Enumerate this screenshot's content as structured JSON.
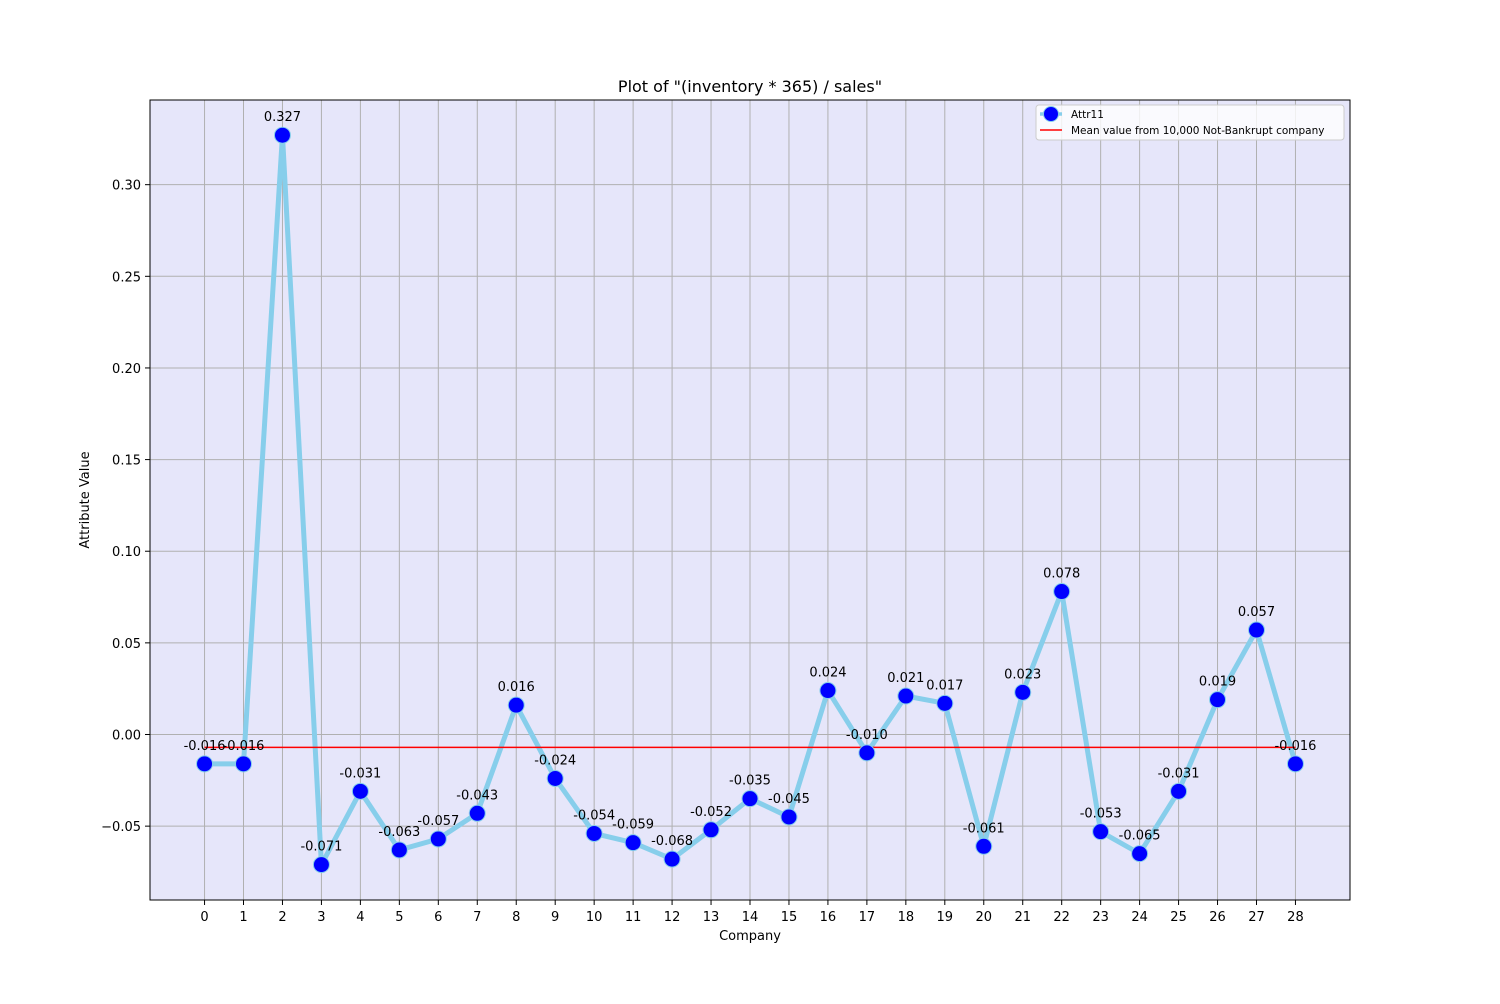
{
  "chart_data": {
    "type": "line",
    "title": "Plot of \"(inventory * 365) / sales\"",
    "xlabel": "Company",
    "ylabel": "Attribute Value",
    "x": [
      0,
      1,
      2,
      3,
      4,
      5,
      6,
      7,
      8,
      9,
      10,
      11,
      12,
      13,
      14,
      15,
      16,
      17,
      18,
      19,
      20,
      21,
      22,
      23,
      24,
      25,
      26,
      27,
      28
    ],
    "x_tick_labels": [
      "0",
      "1",
      "2",
      "3",
      "4",
      "5",
      "6",
      "7",
      "8",
      "9",
      "10",
      "11",
      "12",
      "13",
      "14",
      "15",
      "16",
      "17",
      "18",
      "19",
      "20",
      "21",
      "22",
      "23",
      "24",
      "25",
      "26",
      "27",
      "28"
    ],
    "y_tick_values": [
      -0.05,
      0.0,
      0.05,
      0.1,
      0.15,
      0.2,
      0.25,
      0.3
    ],
    "y_tick_labels": [
      "−0.05",
      "0.00",
      "0.05",
      "0.10",
      "0.15",
      "0.20",
      "0.25",
      "0.30"
    ],
    "xlim": [
      -1.4,
      29.4
    ],
    "ylim": [
      -0.0903,
      0.3462
    ],
    "grid": true,
    "legend_position": "top-right",
    "series": [
      {
        "name": "Attr11",
        "line_color": "#87ceeb",
        "marker_color": "#0000ff",
        "values": [
          -0.016,
          -0.016,
          0.327,
          -0.071,
          -0.031,
          -0.063,
          -0.057,
          -0.043,
          0.016,
          -0.024,
          -0.054,
          -0.059,
          -0.068,
          -0.052,
          -0.035,
          -0.045,
          0.024,
          -0.01,
          0.021,
          0.017,
          -0.061,
          0.023,
          0.078,
          -0.053,
          -0.065,
          -0.031,
          0.019,
          0.057,
          -0.016
        ],
        "data_labels": [
          "-0.016",
          "-0.016",
          "0.327",
          "-0.071",
          "-0.031",
          "-0.063",
          "-0.057",
          "-0.043",
          "0.016",
          "-0.024",
          "-0.054",
          "-0.059",
          "-0.068",
          "-0.052",
          "-0.035",
          "-0.045",
          "0.024",
          "-0.010",
          "0.021",
          "0.017",
          "-0.061",
          "0.023",
          "0.078",
          "-0.053",
          "-0.065",
          "-0.031",
          "0.019",
          "0.057",
          "-0.016"
        ]
      },
      {
        "name": "Mean value from 10,000 Not-Bankrupt company",
        "line_color": "#ff0000",
        "y_constant": -0.007,
        "x_range": [
          0,
          28
        ]
      }
    ],
    "plot_background": "#e6e6fa",
    "grid_color": "#b0b0b0"
  }
}
